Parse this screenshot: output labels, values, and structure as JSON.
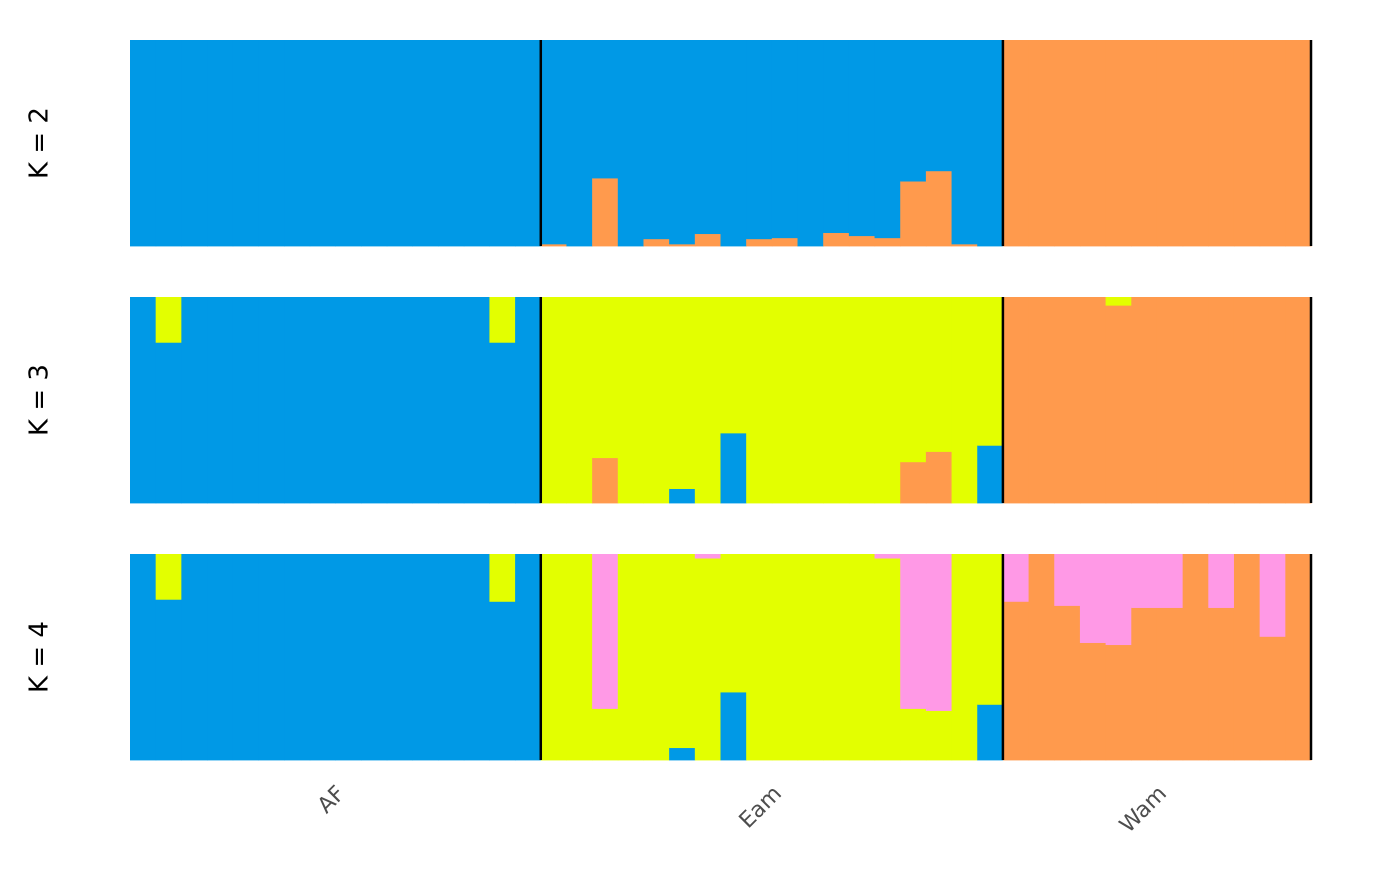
{
  "chart_data": {
    "type": "bar",
    "subtype": "stacked-admixture",
    "colors": {
      "cluster_blue": "#0099E6",
      "cluster_orange": "#FF9A4D",
      "cluster_yellow": "#E3FF00",
      "cluster_pink": "#FF99E6",
      "separator": "#000000"
    },
    "groups": [
      {
        "label": "AF",
        "n": 16
      },
      {
        "label": "Eam",
        "n": 18
      },
      {
        "label": "Wam",
        "n": 12
      }
    ],
    "panels": [
      {
        "label": "K = 2",
        "order": [
          "orange",
          "blue"
        ],
        "individuals": [
          [
            0,
            1
          ],
          [
            0,
            1
          ],
          [
            0,
            1
          ],
          [
            0,
            1
          ],
          [
            0,
            1
          ],
          [
            0,
            1
          ],
          [
            0,
            1
          ],
          [
            0,
            1
          ],
          [
            0,
            1
          ],
          [
            0,
            1
          ],
          [
            0,
            1
          ],
          [
            0,
            1
          ],
          [
            0,
            1
          ],
          [
            0,
            1
          ],
          [
            0,
            1
          ],
          [
            0,
            1
          ],
          [
            0.01,
            0.99
          ],
          [
            0,
            1
          ],
          [
            0.33,
            0.67
          ],
          [
            0,
            1
          ],
          [
            0.035,
            0.965
          ],
          [
            0.01,
            0.99
          ],
          [
            0.06,
            0.94
          ],
          [
            0,
            1
          ],
          [
            0.035,
            0.965
          ],
          [
            0.04,
            0.96
          ],
          [
            0,
            1
          ],
          [
            0.065,
            0.935
          ],
          [
            0.05,
            0.95
          ],
          [
            0.04,
            0.96
          ],
          [
            0.315,
            0.685
          ],
          [
            0.365,
            0.635
          ],
          [
            0.01,
            0.99
          ],
          [
            0,
            1
          ],
          [
            1,
            0
          ],
          [
            1,
            0
          ],
          [
            1,
            0
          ],
          [
            1,
            0
          ],
          [
            1,
            0
          ],
          [
            1,
            0
          ],
          [
            1,
            0
          ],
          [
            1,
            0
          ],
          [
            1,
            0
          ],
          [
            1,
            0
          ],
          [
            1,
            0
          ],
          [
            1,
            0
          ]
        ]
      },
      {
        "label": "K = 3",
        "order": [
          "blue",
          "orange",
          "yellow"
        ],
        "individuals": [
          [
            1,
            0,
            0
          ],
          [
            0.78,
            0,
            0.22
          ],
          [
            1,
            0,
            0
          ],
          [
            1,
            0,
            0
          ],
          [
            1,
            0,
            0
          ],
          [
            1,
            0,
            0
          ],
          [
            1,
            0,
            0
          ],
          [
            1,
            0,
            0
          ],
          [
            1,
            0,
            0
          ],
          [
            1,
            0,
            0
          ],
          [
            1,
            0,
            0
          ],
          [
            1,
            0,
            0
          ],
          [
            1,
            0,
            0
          ],
          [
            1,
            0,
            0
          ],
          [
            0.78,
            0,
            0.22
          ],
          [
            1,
            0,
            0
          ],
          [
            0,
            0,
            1
          ],
          [
            0,
            0,
            1
          ],
          [
            0,
            0.22,
            0.78
          ],
          [
            0,
            0,
            1
          ],
          [
            0,
            0,
            1
          ],
          [
            0.07,
            0,
            0.93
          ],
          [
            0,
            0,
            1
          ],
          [
            0.34,
            0,
            0.66
          ],
          [
            0,
            0,
            1
          ],
          [
            0,
            0,
            1
          ],
          [
            0,
            0,
            1
          ],
          [
            0,
            0,
            1
          ],
          [
            0,
            0,
            1
          ],
          [
            0,
            0,
            1
          ],
          [
            0,
            0.2,
            0.8
          ],
          [
            0,
            0.25,
            0.75
          ],
          [
            0,
            0,
            1
          ],
          [
            0.28,
            0,
            0.72
          ],
          [
            0,
            1,
            0
          ],
          [
            0,
            1,
            0
          ],
          [
            0,
            1,
            0
          ],
          [
            0,
            1,
            0
          ],
          [
            0,
            0.96,
            0.04
          ],
          [
            0,
            1,
            0
          ],
          [
            0,
            1,
            0
          ],
          [
            0,
            1,
            0
          ],
          [
            0,
            1,
            0
          ],
          [
            0,
            1,
            0
          ],
          [
            0,
            1,
            0
          ],
          [
            0,
            1,
            0
          ]
        ]
      },
      {
        "label": "K = 4",
        "order": [
          "blue",
          "orange",
          "yellow",
          "pink"
        ],
        "individuals": [
          [
            1,
            0,
            0,
            0
          ],
          [
            0.78,
            0,
            0.22,
            0
          ],
          [
            1,
            0,
            0,
            0
          ],
          [
            1,
            0,
            0,
            0
          ],
          [
            1,
            0,
            0,
            0
          ],
          [
            1,
            0,
            0,
            0
          ],
          [
            1,
            0,
            0,
            0
          ],
          [
            1,
            0,
            0,
            0
          ],
          [
            1,
            0,
            0,
            0
          ],
          [
            1,
            0,
            0,
            0
          ],
          [
            1,
            0,
            0,
            0
          ],
          [
            1,
            0,
            0,
            0
          ],
          [
            1,
            0,
            0,
            0
          ],
          [
            1,
            0,
            0,
            0
          ],
          [
            0.77,
            0,
            0.23,
            0
          ],
          [
            1,
            0,
            0,
            0
          ],
          [
            0,
            0,
            1,
            0
          ],
          [
            0,
            0,
            1,
            0
          ],
          [
            0,
            0,
            0.25,
            0.75
          ],
          [
            0,
            0,
            1,
            0
          ],
          [
            0,
            0,
            1,
            0
          ],
          [
            0.06,
            0,
            0.94,
            0
          ],
          [
            0,
            0,
            0.98,
            0.02
          ],
          [
            0.33,
            0,
            0.67,
            0
          ],
          [
            0,
            0,
            1,
            0
          ],
          [
            0,
            0,
            1,
            0
          ],
          [
            0,
            0,
            1,
            0
          ],
          [
            0,
            0,
            1,
            0
          ],
          [
            0,
            0,
            1,
            0
          ],
          [
            0,
            0,
            0.98,
            0.02
          ],
          [
            0,
            0,
            0.25,
            0.75
          ],
          [
            0,
            0,
            0.24,
            0.76
          ],
          [
            0,
            0,
            1,
            0
          ],
          [
            0.27,
            0,
            0.73,
            0
          ],
          [
            0,
            0.77,
            0,
            0.23
          ],
          [
            0,
            1,
            0,
            0
          ],
          [
            0,
            0.75,
            0,
            0.25
          ],
          [
            0,
            0.57,
            0,
            0.43
          ],
          [
            0,
            0.56,
            0,
            0.44
          ],
          [
            0,
            0.74,
            0,
            0.26
          ],
          [
            0,
            0.74,
            0,
            0.26
          ],
          [
            0,
            1,
            0,
            0
          ],
          [
            0,
            0.74,
            0,
            0.26
          ],
          [
            0,
            1,
            0,
            0
          ],
          [
            0,
            0.6,
            0,
            0.4
          ],
          [
            0,
            1,
            0,
            0
          ]
        ]
      }
    ]
  }
}
